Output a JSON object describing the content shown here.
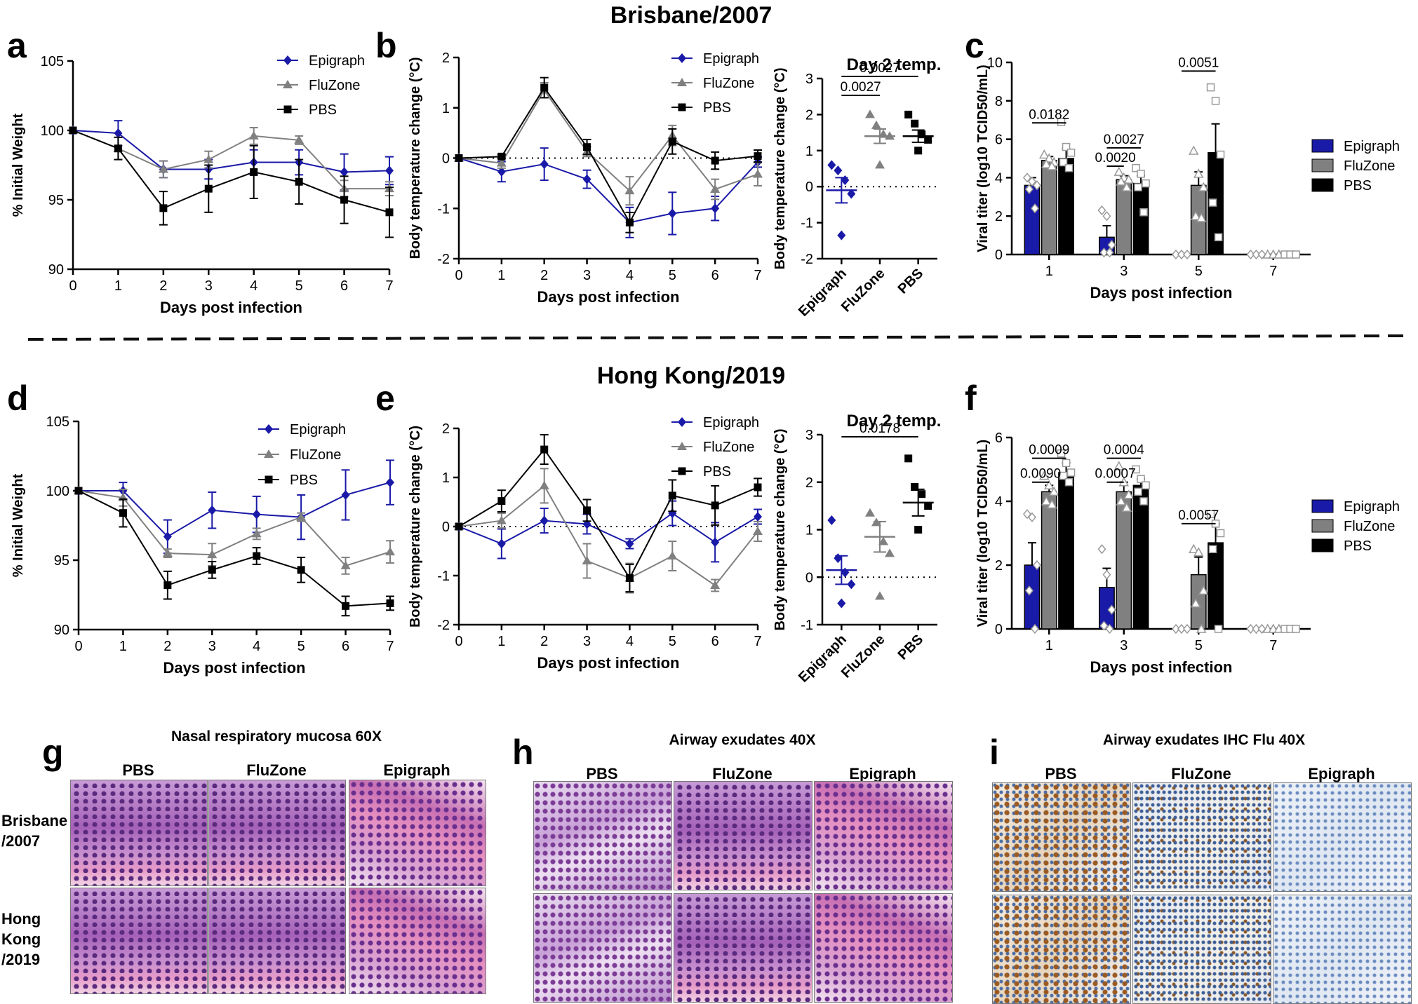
{
  "colors": {
    "epigraph": "#1a1aa8",
    "fluzone": "#808080",
    "pbs": "#000000",
    "axis": "#000000"
  },
  "headings": {
    "brisbane": "Brisbane/2007",
    "hongkong": "Hong Kong/2019"
  },
  "panel_letters": {
    "a": "a",
    "b": "b",
    "c": "c",
    "d": "d",
    "e": "e",
    "f": "f",
    "g": "g",
    "h": "h",
    "i": "i"
  },
  "chart_data": [
    {
      "id": "a",
      "type": "line",
      "xlabel": "Days post infection",
      "ylabel": "% Initial Weight",
      "ylim": [
        90,
        105
      ],
      "yticks": [
        90,
        95,
        100,
        105
      ],
      "xlim": [
        0,
        7
      ],
      "xticks": [
        0,
        1,
        2,
        3,
        4,
        5,
        6,
        7
      ],
      "legend": {
        "position": "top-right",
        "labels": [
          "Epigraph",
          "FluZone",
          "PBS"
        ]
      },
      "x": [
        0,
        1,
        2,
        3,
        4,
        5,
        6,
        7
      ],
      "series": [
        {
          "name": "Epigraph",
          "values": [
            100,
            99.8,
            97.2,
            97.2,
            97.7,
            97.7,
            97,
            97.1
          ],
          "err": [
            0,
            0.9,
            0.6,
            0.7,
            0.9,
            0.9,
            1.3,
            1.0
          ]
        },
        {
          "name": "FluZone",
          "values": [
            100,
            98.7,
            97.2,
            97.9,
            99.6,
            99.3,
            95.8,
            95.8
          ],
          "err": [
            0,
            0.8,
            0.6,
            0.6,
            0.6,
            0.3,
            0.6,
            0.5
          ]
        },
        {
          "name": "PBS",
          "values": [
            100,
            98.7,
            94.4,
            95.8,
            97,
            96.3,
            95,
            94.1
          ],
          "err": [
            0,
            0.8,
            1.2,
            1.7,
            1.9,
            1.6,
            1.7,
            1.8
          ]
        }
      ]
    },
    {
      "id": "b",
      "type": "line",
      "xlabel": "Days post infection",
      "ylabel": "Body temperature change (°C)",
      "ylim": [
        -2,
        2
      ],
      "yticks": [
        -2,
        -1,
        0,
        1,
        2
      ],
      "xlim": [
        0,
        7
      ],
      "xticks": [
        0,
        1,
        2,
        3,
        4,
        5,
        6,
        7
      ],
      "legend": {
        "position": "top-right",
        "labels": [
          "Epigraph",
          "FluZone",
          "PBS"
        ]
      },
      "x": [
        0,
        1,
        2,
        3,
        4,
        5,
        6,
        7
      ],
      "series": [
        {
          "name": "Epigraph",
          "values": [
            0,
            -0.27,
            -0.12,
            -0.42,
            -1.28,
            -1.1,
            -1.0,
            -0.08
          ],
          "err": [
            0,
            0.2,
            0.32,
            0.18,
            0.3,
            0.42,
            0.24,
            0.1
          ]
        },
        {
          "name": "FluZone",
          "values": [
            0,
            -0.1,
            1.35,
            0.13,
            -0.65,
            0.45,
            -0.62,
            -0.32
          ],
          "err": [
            0,
            0.1,
            0.15,
            0.1,
            0.28,
            0.2,
            0.2,
            0.23
          ]
        },
        {
          "name": "PBS",
          "values": [
            0,
            0.03,
            1.4,
            0.22,
            -1.28,
            0.33,
            -0.05,
            0.04
          ],
          "err": [
            0,
            0.04,
            0.2,
            0.15,
            0.2,
            0.25,
            0.17,
            0.12
          ]
        }
      ]
    },
    {
      "id": "b2",
      "type": "scatter",
      "title": "Day 2 temp.",
      "ylabel": "Body temperature change (°C)",
      "ylim": [
        -2,
        3
      ],
      "yticks": [
        -2,
        -1,
        0,
        1,
        2,
        3
      ],
      "categories": [
        "Epigraph",
        "FluZone",
        "PBS"
      ],
      "points": [
        [
          0.6,
          0.45,
          0.18,
          -0.2,
          -1.35
        ],
        [
          2.0,
          1.7,
          1.45,
          1.4,
          0.6
        ],
        [
          2.0,
          1.75,
          1.45,
          1.3,
          1.0
        ]
      ],
      "means": [
        -0.1,
        1.4,
        1.4
      ],
      "err": [
        0.35,
        0.2,
        0.17
      ],
      "annotations": [
        {
          "text": "0.0027",
          "from": 0,
          "to": 2
        },
        {
          "text": "0.0027",
          "from": 0,
          "to": 1
        }
      ]
    },
    {
      "id": "c",
      "type": "bar",
      "xlabel": "Days post infection",
      "ylabel": "Viral titer (log10 TCID50/mL)",
      "ylim": [
        0,
        10
      ],
      "yticks": [
        0,
        2,
        4,
        6,
        8,
        10
      ],
      "categories": [
        "1",
        "3",
        "5",
        "7"
      ],
      "legend": {
        "position": "right",
        "labels": [
          "Epigraph",
          "FluZone",
          "PBS"
        ]
      },
      "series": [
        {
          "name": "Epigraph",
          "values": [
            3.6,
            0.9,
            0,
            0
          ],
          "err": [
            0.4,
            0.6,
            0,
            0
          ],
          "points": [
            [
              4.0,
              3.8,
              3.6,
              3.4,
              2.4
            ],
            [
              2.3,
              2.0,
              0.5,
              0.1,
              0.1
            ],
            [
              0,
              0,
              0
            ],
            [
              0,
              0,
              0
            ]
          ]
        },
        {
          "name": "FluZone",
          "values": [
            4.9,
            3.9,
            3.6,
            0
          ],
          "err": [
            0.2,
            0.2,
            0.7,
            0
          ],
          "points": [
            [
              5.2,
              5.0,
              4.8,
              4.7,
              4.6
            ],
            [
              4.3,
              4.0,
              3.9,
              3.8,
              3.5
            ],
            [
              5.4,
              4.2,
              3.5,
              2.0,
              1.9
            ],
            [
              0,
              0,
              0
            ]
          ]
        },
        {
          "name": "PBS",
          "values": [
            5.0,
            3.7,
            5.3,
            0
          ],
          "err": [
            0.5,
            0.4,
            1.5,
            0
          ],
          "points": [
            [
              6.9,
              5.6,
              5.3,
              4.8,
              4.5
            ],
            [
              4.5,
              4.2,
              3.7,
              3.5,
              2.2
            ],
            [
              8.7,
              8.0,
              5.2,
              2.7,
              0.9
            ],
            [
              0,
              0,
              0
            ]
          ]
        }
      ],
      "annotations": [
        {
          "text": "0.0182",
          "group": 0,
          "from": 0,
          "to": 2,
          "level": 6.85
        },
        {
          "text": "0.0027",
          "group": 1,
          "from": 0,
          "to": 2,
          "level": 5.55
        },
        {
          "text": "0.0020",
          "group": 1,
          "from": 0,
          "to": 1,
          "level": 4.6
        },
        {
          "text": "0.0051",
          "group": 2,
          "from": 0,
          "to": 2,
          "level": 9.55
        }
      ]
    },
    {
      "id": "d",
      "type": "line",
      "xlabel": "Days post infection",
      "ylabel": "% Initial Weight",
      "ylim": [
        90,
        105
      ],
      "yticks": [
        90,
        95,
        100,
        105
      ],
      "xlim": [
        0,
        7
      ],
      "xticks": [
        0,
        1,
        2,
        3,
        4,
        5,
        6,
        7
      ],
      "legend": {
        "position": "top-right",
        "labels": [
          "Epigraph",
          "FluZone",
          "PBS"
        ]
      },
      "x": [
        0,
        1,
        2,
        3,
        4,
        5,
        6,
        7
      ],
      "series": [
        {
          "name": "Epigraph",
          "values": [
            100,
            100,
            96.7,
            98.6,
            98.3,
            98.1,
            99.7,
            100.6
          ],
          "err": [
            0,
            0.6,
            1.2,
            1.3,
            1.3,
            1.6,
            1.8,
            1.6
          ]
        },
        {
          "name": "FluZone",
          "values": [
            100,
            99.5,
            95.5,
            95.4,
            96.9,
            98.1,
            94.6,
            95.6
          ],
          "err": [
            0,
            0.6,
            0.3,
            0.8,
            0.4,
            0.3,
            0.6,
            0.8
          ]
        },
        {
          "name": "PBS",
          "values": [
            100,
            98.4,
            93.2,
            94.3,
            95.3,
            94.3,
            91.7,
            91.9
          ],
          "err": [
            0,
            1.0,
            1.0,
            0.6,
            0.6,
            0.9,
            0.7,
            0.5
          ]
        }
      ]
    },
    {
      "id": "e",
      "type": "line",
      "xlabel": "Days post infection",
      "ylabel": "Body temperature change (°C)",
      "ylim": [
        -2,
        2
      ],
      "yticks": [
        -2,
        -1,
        0,
        1,
        2
      ],
      "xlim": [
        0,
        7
      ],
      "xticks": [
        0,
        1,
        2,
        3,
        4,
        5,
        6,
        7
      ],
      "legend": {
        "position": "top-right",
        "labels": [
          "Epigraph",
          "FluZone",
          "PBS"
        ]
      },
      "x": [
        0,
        1,
        2,
        3,
        4,
        5,
        6,
        7
      ],
      "series": [
        {
          "name": "Epigraph",
          "values": [
            0,
            -0.35,
            0.12,
            0.05,
            -0.35,
            0.27,
            -0.32,
            0.2
          ],
          "err": [
            0,
            0.3,
            0.25,
            0.2,
            0.1,
            0.25,
            0.4,
            0.15
          ]
        },
        {
          "name": "FluZone",
          "values": [
            0,
            0.12,
            0.83,
            -0.7,
            -1.05,
            -0.6,
            -1.2,
            -0.1
          ],
          "err": [
            0,
            0.15,
            0.35,
            0.35,
            0.3,
            0.3,
            0.12,
            0.2
          ]
        },
        {
          "name": "PBS",
          "values": [
            0,
            0.52,
            1.57,
            0.33,
            -1.05,
            0.63,
            0.43,
            0.8
          ],
          "err": [
            0,
            0.22,
            0.3,
            0.22,
            0.28,
            0.32,
            0.4,
            0.18
          ]
        }
      ]
    },
    {
      "id": "e2",
      "type": "scatter",
      "title": "Day 2 temp.",
      "ylabel": "Body temperature change (°C)",
      "ylim": [
        -1,
        3
      ],
      "yticks": [
        -1,
        0,
        1,
        2,
        3
      ],
      "categories": [
        "Epigraph",
        "FluZone",
        "PBS"
      ],
      "points": [
        [
          1.2,
          0.4,
          0.1,
          -0.15,
          -0.55
        ],
        [
          1.35,
          1.15,
          0.75,
          0.5,
          -0.4
        ],
        [
          2.5,
          1.9,
          1.75,
          1.5,
          1.0
        ]
      ],
      "means": [
        0.15,
        0.85,
        1.57
      ],
      "err": [
        0.3,
        0.32,
        0.28
      ],
      "annotations": [
        {
          "text": "0.0178",
          "from": 0,
          "to": 2
        }
      ]
    },
    {
      "id": "f",
      "type": "bar",
      "xlabel": "Days post infection",
      "ylabel": "Viral titer (log10 TCID50/mL)",
      "ylim": [
        0,
        6
      ],
      "yticks": [
        0,
        2,
        4,
        6
      ],
      "categories": [
        "1",
        "3",
        "5",
        "7"
      ],
      "legend": {
        "position": "right",
        "labels": [
          "Epigraph",
          "FluZone",
          "PBS"
        ]
      },
      "series": [
        {
          "name": "Epigraph",
          "values": [
            2.0,
            1.3,
            0,
            0
          ],
          "err": [
            0.7,
            0.6,
            0,
            0
          ],
          "points": [
            [
              3.6,
              3.5,
              2.0,
              1.2,
              0.0
            ],
            [
              2.5,
              1.7,
              0.6,
              0.1,
              0.0
            ],
            [
              0,
              0,
              0
            ],
            [
              0,
              0,
              0
            ]
          ]
        },
        {
          "name": "FluZone",
          "values": [
            4.3,
            4.3,
            1.7,
            0
          ],
          "err": [
            0.2,
            0.3,
            0.55,
            0
          ],
          "points": [
            [
              4.8,
              4.5,
              4.3,
              4.0,
              3.9
            ],
            [
              5.1,
              4.6,
              4.2,
              4.0,
              3.8
            ],
            [
              2.5,
              2.4,
              1.2,
              0.8,
              0.0
            ],
            [
              0,
              0,
              0
            ]
          ]
        },
        {
          "name": "PBS",
          "values": [
            4.9,
            4.5,
            2.7,
            0
          ],
          "err": [
            0.3,
            0.2,
            0.6,
            0
          ],
          "points": [
            [
              5.5,
              5.2,
              4.9,
              4.8,
              4.6
            ],
            [
              5.0,
              4.7,
              4.5,
              4.3,
              4.0
            ],
            [
              3.6,
              3.3,
              3.0,
              2.5,
              0.0
            ],
            [
              0,
              0,
              0
            ]
          ]
        }
      ],
      "annotations": [
        {
          "text": "0.0009",
          "group": 0,
          "from": 0,
          "to": 2,
          "level": 5.35
        },
        {
          "text": "0.0090",
          "group": 0,
          "from": 0,
          "to": 1,
          "level": 4.6
        },
        {
          "text": "0.0004",
          "group": 1,
          "from": 0,
          "to": 2,
          "level": 5.35
        },
        {
          "text": "0.0007",
          "group": 1,
          "from": 0,
          "to": 1,
          "level": 4.6
        },
        {
          "text": "0.0057",
          "group": 2,
          "from": 0,
          "to": 2,
          "level": 3.3
        }
      ]
    }
  ],
  "histology": {
    "g": {
      "title": "Nasal respiratory mucosa 60X",
      "columns": [
        "PBS",
        "FluZone",
        "Epigraph"
      ],
      "rows": [
        "Brisbane\n/2007",
        "Hong\nKong\n/2019"
      ]
    },
    "h": {
      "title": "Airway exudates 40X",
      "columns": [
        "PBS",
        "FluZone",
        "Epigraph"
      ]
    },
    "i": {
      "title": "Airway exudates IHC Flu 40X",
      "columns": [
        "PBS",
        "FluZone",
        "Epigraph"
      ]
    }
  }
}
